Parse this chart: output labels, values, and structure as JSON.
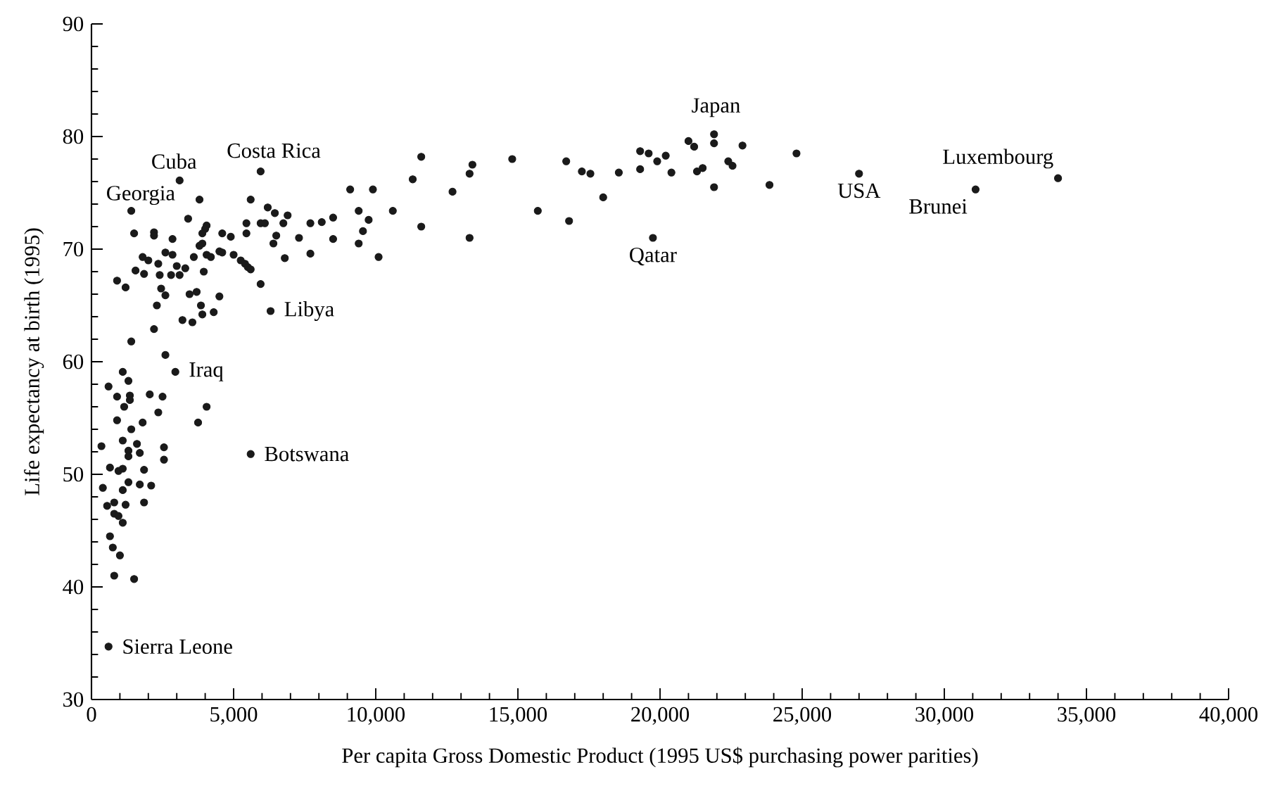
{
  "chart_data": {
    "type": "scatter",
    "xlabel": "Per capita Gross Domestic Product (1995 US$ purchasing power parities)",
    "ylabel": "Life expectancy at birth (1995)",
    "xlim": [
      0,
      40000
    ],
    "ylim": [
      30,
      90
    ],
    "xticks": [
      0,
      {
        "value": 5000,
        "label": "5,000"
      },
      {
        "value": 10000,
        "label": "10,000"
      },
      {
        "value": 15000,
        "label": "15,000"
      },
      {
        "value": 20000,
        "label": "20,000"
      },
      {
        "value": 25000,
        "label": "25,000"
      },
      {
        "value": 30000,
        "label": "30,000"
      },
      {
        "value": 35000,
        "label": "35,000"
      },
      {
        "value": 40000,
        "label": "40,000"
      }
    ],
    "yticks": [
      30,
      40,
      50,
      60,
      70,
      80,
      90
    ],
    "marker": "circle",
    "color": "#1a1a1a",
    "x": [
      3100,
      5950,
      3800,
      1400,
      5600,
      6200,
      6450,
      6900,
      3400,
      4050,
      4000,
      5450,
      5950,
      6100,
      6750,
      7700,
      8100,
      8500,
      1500,
      2200,
      2200,
      2850,
      3900,
      4600,
      4900,
      5450,
      6500,
      6400,
      7300,
      8500,
      3900,
      3800,
      1800,
      2000,
      2600,
      2850,
      3600,
      4050,
      4200,
      4500,
      4600,
      5000,
      5250,
      5400,
      5500,
      5600,
      6800,
      7700,
      1550,
      1850,
      2350,
      2400,
      2800,
      3000,
      3100,
      3300,
      3950,
      900,
      1200,
      2450,
      2600,
      3450,
      3700,
      4500,
      5950,
      2300,
      3850,
      3900,
      4300,
      6300,
      3200,
      3550,
      2200,
      1400,
      2600,
      2950,
      1100,
      1300,
      600,
      900,
      1350,
      1350,
      2050,
      2500,
      1150,
      4050,
      2350,
      900,
      1800,
      1400,
      3750,
      1100,
      1600,
      350,
      2550,
      1300,
      1700,
      1300,
      2550,
      5600,
      650,
      950,
      1100,
      1850,
      400,
      1100,
      1300,
      1700,
      2100,
      550,
      800,
      1200,
      1850,
      800,
      950,
      1100,
      650,
      750,
      1000,
      800,
      1500,
      600,
      11600,
      9100,
      9900,
      9400,
      9750,
      9550,
      9400,
      10100,
      10600,
      11300,
      11600,
      12700,
      13400,
      13300,
      13300,
      14800,
      15700,
      16700,
      16800,
      17250,
      17550,
      18000,
      18550,
      19300,
      19600,
      19300,
      19900,
      20200,
      20400,
      19750,
      21000,
      21200,
      21900,
      21900,
      21300,
      21500,
      21900,
      22400,
      22550,
      22900,
      24800,
      23850,
      27000,
      31100,
      34000
    ],
    "values": [
      76.1,
      76.9,
      74.4,
      73.4,
      74.4,
      73.7,
      73.2,
      73.0,
      72.7,
      72.1,
      71.8,
      72.3,
      72.3,
      72.3,
      72.3,
      72.3,
      72.4,
      72.8,
      71.4,
      71.5,
      71.2,
      70.9,
      71.4,
      71.4,
      71.1,
      71.4,
      71.2,
      70.5,
      71.0,
      70.9,
      70.5,
      70.3,
      69.3,
      69.0,
      69.7,
      69.5,
      69.3,
      69.5,
      69.3,
      69.8,
      69.7,
      69.5,
      69.0,
      68.7,
      68.4,
      68.2,
      69.2,
      69.6,
      68.1,
      67.8,
      68.7,
      67.7,
      67.7,
      68.5,
      67.7,
      68.3,
      68.0,
      67.2,
      66.6,
      66.5,
      65.9,
      66.0,
      66.2,
      65.8,
      66.9,
      65.0,
      65.0,
      64.2,
      64.4,
      64.5,
      63.7,
      63.5,
      62.9,
      61.8,
      60.6,
      59.1,
      59.1,
      58.3,
      57.8,
      56.9,
      57.0,
      56.6,
      57.1,
      56.9,
      56.0,
      56.0,
      55.5,
      54.8,
      54.6,
      54.0,
      54.6,
      53.0,
      52.7,
      52.5,
      52.4,
      52.1,
      51.9,
      51.6,
      51.3,
      51.8,
      50.6,
      50.3,
      50.5,
      50.4,
      48.8,
      48.6,
      49.3,
      49.1,
      49.0,
      47.2,
      47.5,
      47.3,
      47.5,
      46.5,
      46.3,
      45.7,
      44.5,
      43.5,
      42.8,
      41.0,
      40.7,
      34.7,
      78.2,
      75.3,
      75.3,
      73.4,
      72.6,
      71.6,
      70.5,
      69.3,
      73.4,
      76.2,
      72.0,
      75.1,
      77.5,
      76.7,
      71.0,
      78.0,
      73.4,
      77.8,
      72.5,
      76.9,
      76.7,
      74.6,
      76.8,
      78.7,
      78.5,
      77.1,
      77.8,
      78.3,
      76.8,
      71.0,
      79.6,
      79.1,
      80.2,
      79.4,
      76.9,
      77.2,
      75.5,
      77.8,
      77.4,
      79.2,
      78.5,
      75.7,
      76.7,
      75.3,
      76.3
    ],
    "annotations": [
      {
        "text": "Cuba",
        "x": 3100,
        "y": 76.1
      },
      {
        "text": "Costa Rica",
        "x": 5950,
        "y": 76.9
      },
      {
        "text": "Georgia",
        "x": 1400,
        "y": 73.4
      },
      {
        "text": "Libya",
        "x": 6300,
        "y": 64.5
      },
      {
        "text": "Iraq",
        "x": 2950,
        "y": 59.1
      },
      {
        "text": "Botswana",
        "x": 5600,
        "y": 51.8
      },
      {
        "text": "Sierra Leone",
        "x": 600,
        "y": 34.7
      },
      {
        "text": "Japan",
        "x": 21900,
        "y": 80.2
      },
      {
        "text": "Qatar",
        "x": 19750,
        "y": 71.0
      },
      {
        "text": "USA",
        "x": 27000,
        "y": 76.7
      },
      {
        "text": "Brunei",
        "x": 31100,
        "y": 75.3
      },
      {
        "text": "Luxembourg",
        "x": 34000,
        "y": 76.3
      }
    ]
  }
}
